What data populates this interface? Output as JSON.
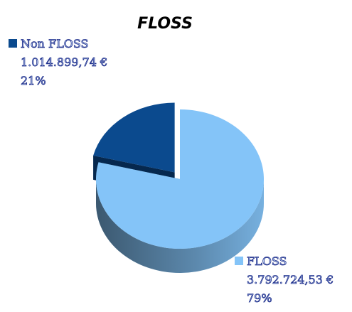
{
  "chart_data": {
    "type": "pie3d",
    "title": "FLOSS",
    "categories": [
      "Non FLOSS",
      "FLOSS"
    ],
    "values": [
      1014899.74,
      3792724.53
    ],
    "value_labels": [
      "1.014.899,74 €",
      "3.792.724,53 €"
    ],
    "percents": [
      21,
      79
    ],
    "percent_labels": [
      "21%",
      "79%"
    ],
    "colors": [
      "#0b4a8e",
      "#84c4f8"
    ]
  }
}
